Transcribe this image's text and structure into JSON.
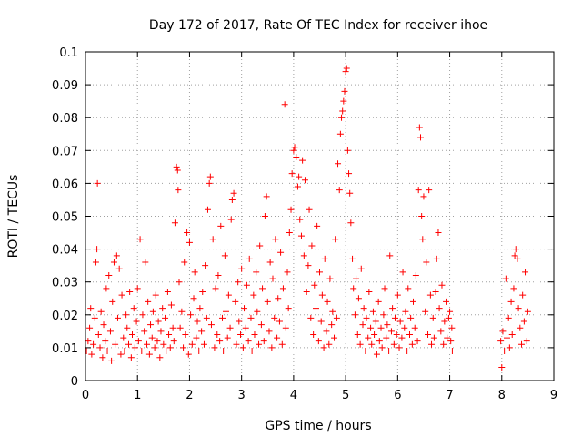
{
  "chart_data": {
    "type": "scatter",
    "title": "Day 172 of 2017, Rate Of TEC Index for receiver ihoe",
    "xlabel": "GPS time / hours",
    "ylabel": "ROTI / TECUs",
    "xlim": [
      0,
      9
    ],
    "ylim": [
      0,
      0.1
    ],
    "x_ticks": [
      "0",
      "1",
      "2",
      "3",
      "4",
      "5",
      "6",
      "7",
      "8",
      "9"
    ],
    "y_ticks": [
      "0",
      "0.01",
      "0.02",
      "0.03",
      "0.04",
      "0.05",
      "0.06",
      "0.07",
      "0.08",
      "0.09",
      "0.1"
    ],
    "x_tick_values": [
      0,
      1,
      2,
      3,
      4,
      5,
      6,
      7,
      8,
      9
    ],
    "y_tick_values": [
      0,
      0.01,
      0.02,
      0.03,
      0.04,
      0.05,
      0.06,
      0.07,
      0.08,
      0.09,
      0.1
    ],
    "grid": true,
    "marker": "+",
    "color": "#ff0000",
    "series": [
      {
        "name": "ROTI",
        "points": [
          [
            0.02,
            0.009
          ],
          [
            0.05,
            0.012
          ],
          [
            0.08,
            0.016
          ],
          [
            0.1,
            0.022
          ],
          [
            0.12,
            0.008
          ],
          [
            0.15,
            0.011
          ],
          [
            0.18,
            0.019
          ],
          [
            0.2,
            0.036
          ],
          [
            0.22,
            0.04
          ],
          [
            0.23,
            0.06
          ],
          [
            0.25,
            0.014
          ],
          [
            0.28,
            0.01
          ],
          [
            0.3,
            0.021
          ],
          [
            0.33,
            0.007
          ],
          [
            0.35,
            0.017
          ],
          [
            0.38,
            0.012
          ],
          [
            0.4,
            0.028
          ],
          [
            0.42,
            0.009
          ],
          [
            0.45,
            0.032
          ],
          [
            0.48,
            0.015
          ],
          [
            0.5,
            0.006
          ],
          [
            0.52,
            0.024
          ],
          [
            0.55,
            0.036
          ],
          [
            0.57,
            0.011
          ],
          [
            0.6,
            0.038
          ],
          [
            0.62,
            0.019
          ],
          [
            0.65,
            0.034
          ],
          [
            0.68,
            0.008
          ],
          [
            0.7,
            0.026
          ],
          [
            0.73,
            0.013
          ],
          [
            0.75,
            0.009
          ],
          [
            0.78,
            0.02
          ],
          [
            0.8,
            0.016
          ],
          [
            0.83,
            0.011
          ],
          [
            0.85,
            0.027
          ],
          [
            0.88,
            0.007
          ],
          [
            0.9,
            0.014
          ],
          [
            0.93,
            0.022
          ],
          [
            0.95,
            0.01
          ],
          [
            0.98,
            0.018
          ],
          [
            1.0,
            0.028
          ],
          [
            1.02,
            0.012
          ],
          [
            1.05,
            0.043
          ],
          [
            1.08,
            0.009
          ],
          [
            1.1,
            0.02
          ],
          [
            1.13,
            0.015
          ],
          [
            1.15,
            0.036
          ],
          [
            1.18,
            0.011
          ],
          [
            1.2,
            0.024
          ],
          [
            1.23,
            0.008
          ],
          [
            1.25,
            0.017
          ],
          [
            1.28,
            0.013
          ],
          [
            1.3,
            0.021
          ],
          [
            1.33,
            0.01
          ],
          [
            1.35,
            0.026
          ],
          [
            1.38,
            0.012
          ],
          [
            1.4,
            0.018
          ],
          [
            1.43,
            0.007
          ],
          [
            1.45,
            0.015
          ],
          [
            1.48,
            0.022
          ],
          [
            1.5,
            0.011
          ],
          [
            1.53,
            0.019
          ],
          [
            1.55,
            0.009
          ],
          [
            1.58,
            0.027
          ],
          [
            1.6,
            0.014
          ],
          [
            1.63,
            0.01
          ],
          [
            1.65,
            0.023
          ],
          [
            1.68,
            0.016
          ],
          [
            1.7,
            0.012
          ],
          [
            1.72,
            0.048
          ],
          [
            1.75,
            0.065
          ],
          [
            1.77,
            0.064
          ],
          [
            1.78,
            0.058
          ],
          [
            1.8,
            0.03
          ],
          [
            1.82,
            0.016
          ],
          [
            1.85,
            0.021
          ],
          [
            1.88,
            0.01
          ],
          [
            1.9,
            0.036
          ],
          [
            1.92,
            0.014
          ],
          [
            1.95,
            0.045
          ],
          [
            1.98,
            0.008
          ],
          [
            2.0,
            0.042
          ],
          [
            2.02,
            0.02
          ],
          [
            2.05,
            0.011
          ],
          [
            2.08,
            0.025
          ],
          [
            2.1,
            0.033
          ],
          [
            2.13,
            0.013
          ],
          [
            2.15,
            0.018
          ],
          [
            2.18,
            0.009
          ],
          [
            2.2,
            0.022
          ],
          [
            2.23,
            0.015
          ],
          [
            2.25,
            0.027
          ],
          [
            2.28,
            0.011
          ],
          [
            2.3,
            0.035
          ],
          [
            2.33,
            0.019
          ],
          [
            2.35,
            0.052
          ],
          [
            2.38,
            0.06
          ],
          [
            2.4,
            0.062
          ],
          [
            2.42,
            0.017
          ],
          [
            2.45,
            0.043
          ],
          [
            2.48,
            0.01
          ],
          [
            2.5,
            0.028
          ],
          [
            2.53,
            0.014
          ],
          [
            2.55,
            0.032
          ],
          [
            2.58,
            0.012
          ],
          [
            2.6,
            0.047
          ],
          [
            2.63,
            0.019
          ],
          [
            2.65,
            0.009
          ],
          [
            2.68,
            0.038
          ],
          [
            2.7,
            0.021
          ],
          [
            2.73,
            0.013
          ],
          [
            2.75,
            0.026
          ],
          [
            2.78,
            0.016
          ],
          [
            2.8,
            0.049
          ],
          [
            2.82,
            0.055
          ],
          [
            2.85,
            0.057
          ],
          [
            2.88,
            0.024
          ],
          [
            2.9,
            0.011
          ],
          [
            2.93,
            0.03
          ],
          [
            2.95,
            0.018
          ],
          [
            2.98,
            0.014
          ],
          [
            3.0,
            0.034
          ],
          [
            3.03,
            0.01
          ],
          [
            3.05,
            0.022
          ],
          [
            3.08,
            0.016
          ],
          [
            3.1,
            0.029
          ],
          [
            3.13,
            0.012
          ],
          [
            3.15,
            0.037
          ],
          [
            3.18,
            0.019
          ],
          [
            3.2,
            0.009
          ],
          [
            3.23,
            0.026
          ],
          [
            3.25,
            0.014
          ],
          [
            3.28,
            0.033
          ],
          [
            3.3,
            0.021
          ],
          [
            3.33,
            0.011
          ],
          [
            3.35,
            0.041
          ],
          [
            3.38,
            0.017
          ],
          [
            3.4,
            0.028
          ],
          [
            3.43,
            0.012
          ],
          [
            3.45,
            0.05
          ],
          [
            3.48,
            0.056
          ],
          [
            3.5,
            0.024
          ],
          [
            3.53,
            0.015
          ],
          [
            3.55,
            0.036
          ],
          [
            3.58,
            0.01
          ],
          [
            3.6,
            0.031
          ],
          [
            3.63,
            0.019
          ],
          [
            3.65,
            0.043
          ],
          [
            3.68,
            0.013
          ],
          [
            3.7,
            0.025
          ],
          [
            3.73,
            0.018
          ],
          [
            3.75,
            0.039
          ],
          [
            3.78,
            0.011
          ],
          [
            3.8,
            0.028
          ],
          [
            3.83,
            0.084
          ],
          [
            3.85,
            0.016
          ],
          [
            3.88,
            0.033
          ],
          [
            3.9,
            0.022
          ],
          [
            3.92,
            0.045
          ],
          [
            3.95,
            0.052
          ],
          [
            3.97,
            0.063
          ],
          [
            4.0,
            0.07
          ],
          [
            4.02,
            0.071
          ],
          [
            4.05,
            0.068
          ],
          [
            4.08,
            0.059
          ],
          [
            4.1,
            0.062
          ],
          [
            4.12,
            0.049
          ],
          [
            4.15,
            0.044
          ],
          [
            4.17,
            0.067
          ],
          [
            4.2,
            0.038
          ],
          [
            4.22,
            0.061
          ],
          [
            4.25,
            0.027
          ],
          [
            4.28,
            0.035
          ],
          [
            4.3,
            0.052
          ],
          [
            4.33,
            0.019
          ],
          [
            4.35,
            0.041
          ],
          [
            4.38,
            0.014
          ],
          [
            4.4,
            0.029
          ],
          [
            4.43,
            0.022
          ],
          [
            4.45,
            0.047
          ],
          [
            4.48,
            0.012
          ],
          [
            4.5,
            0.033
          ],
          [
            4.53,
            0.018
          ],
          [
            4.55,
            0.026
          ],
          [
            4.58,
            0.01
          ],
          [
            4.6,
            0.037
          ],
          [
            4.63,
            0.015
          ],
          [
            4.65,
            0.024
          ],
          [
            4.68,
            0.011
          ],
          [
            4.7,
            0.031
          ],
          [
            4.73,
            0.017
          ],
          [
            4.75,
            0.021
          ],
          [
            4.78,
            0.013
          ],
          [
            4.8,
            0.043
          ],
          [
            4.83,
            0.019
          ],
          [
            4.85,
            0.066
          ],
          [
            4.88,
            0.058
          ],
          [
            4.9,
            0.075
          ],
          [
            4.92,
            0.08
          ],
          [
            4.94,
            0.082
          ],
          [
            4.96,
            0.085
          ],
          [
            4.98,
            0.088
          ],
          [
            5.0,
            0.094
          ],
          [
            5.02,
            0.095
          ],
          [
            5.04,
            0.07
          ],
          [
            5.06,
            0.063
          ],
          [
            5.08,
            0.057
          ],
          [
            5.1,
            0.048
          ],
          [
            5.13,
            0.037
          ],
          [
            5.15,
            0.028
          ],
          [
            5.18,
            0.02
          ],
          [
            5.2,
            0.031
          ],
          [
            5.23,
            0.014
          ],
          [
            5.25,
            0.025
          ],
          [
            5.28,
            0.011
          ],
          [
            5.3,
            0.034
          ],
          [
            5.33,
            0.017
          ],
          [
            5.35,
            0.022
          ],
          [
            5.38,
            0.009
          ],
          [
            5.4,
            0.019
          ],
          [
            5.43,
            0.013
          ],
          [
            5.45,
            0.027
          ],
          [
            5.48,
            0.016
          ],
          [
            5.5,
            0.011
          ],
          [
            5.53,
            0.021
          ],
          [
            5.55,
            0.014
          ],
          [
            5.58,
            0.018
          ],
          [
            5.6,
            0.008
          ],
          [
            5.63,
            0.024
          ],
          [
            5.65,
            0.012
          ],
          [
            5.68,
            0.016
          ],
          [
            5.7,
            0.01
          ],
          [
            5.73,
            0.02
          ],
          [
            5.75,
            0.028
          ],
          [
            5.78,
            0.013
          ],
          [
            5.8,
            0.017
          ],
          [
            5.83,
            0.009
          ],
          [
            5.85,
            0.038
          ],
          [
            5.88,
            0.015
          ],
          [
            5.9,
            0.022
          ],
          [
            5.93,
            0.011
          ],
          [
            5.95,
            0.019
          ],
          [
            5.98,
            0.014
          ],
          [
            6.0,
            0.026
          ],
          [
            6.03,
            0.01
          ],
          [
            6.05,
            0.018
          ],
          [
            6.08,
            0.013
          ],
          [
            6.1,
            0.033
          ],
          [
            6.13,
            0.016
          ],
          [
            6.15,
            0.021
          ],
          [
            6.18,
            0.009
          ],
          [
            6.2,
            0.028
          ],
          [
            6.23,
            0.014
          ],
          [
            6.25,
            0.019
          ],
          [
            6.28,
            0.011
          ],
          [
            6.3,
            0.024
          ],
          [
            6.33,
            0.016
          ],
          [
            6.35,
            0.032
          ],
          [
            6.38,
            0.012
          ],
          [
            6.4,
            0.058
          ],
          [
            6.42,
            0.077
          ],
          [
            6.44,
            0.074
          ],
          [
            6.46,
            0.05
          ],
          [
            6.48,
            0.043
          ],
          [
            6.5,
            0.056
          ],
          [
            6.53,
            0.021
          ],
          [
            6.55,
            0.036
          ],
          [
            6.58,
            0.014
          ],
          [
            6.6,
            0.058
          ],
          [
            6.63,
            0.026
          ],
          [
            6.65,
            0.011
          ],
          [
            6.68,
            0.019
          ],
          [
            6.7,
            0.013
          ],
          [
            6.73,
            0.027
          ],
          [
            6.75,
            0.037
          ],
          [
            6.78,
            0.045
          ],
          [
            6.8,
            0.022
          ],
          [
            6.83,
            0.015
          ],
          [
            6.85,
            0.029
          ],
          [
            6.88,
            0.011
          ],
          [
            6.9,
            0.018
          ],
          [
            6.93,
            0.024
          ],
          [
            6.95,
            0.013
          ],
          [
            6.98,
            0.019
          ],
          [
            7.0,
            0.021
          ],
          [
            7.02,
            0.012
          ],
          [
            7.04,
            0.016
          ],
          [
            7.05,
            0.009
          ],
          [
            7.98,
            0.012
          ],
          [
            8.0,
            0.004
          ],
          [
            8.02,
            0.015
          ],
          [
            8.05,
            0.009
          ],
          [
            8.08,
            0.031
          ],
          [
            8.1,
            0.013
          ],
          [
            8.13,
            0.019
          ],
          [
            8.15,
            0.01
          ],
          [
            8.18,
            0.024
          ],
          [
            8.2,
            0.014
          ],
          [
            8.23,
            0.028
          ],
          [
            8.25,
            0.038
          ],
          [
            8.27,
            0.04
          ],
          [
            8.3,
            0.037
          ],
          [
            8.32,
            0.022
          ],
          [
            8.35,
            0.016
          ],
          [
            8.38,
            0.011
          ],
          [
            8.4,
            0.026
          ],
          [
            8.43,
            0.018
          ],
          [
            8.45,
            0.033
          ],
          [
            8.48,
            0.012
          ],
          [
            8.5,
            0.021
          ]
        ]
      }
    ]
  }
}
